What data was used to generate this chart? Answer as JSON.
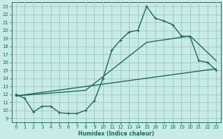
{
  "xlabel": "Humidex (Indice chaleur)",
  "ylabel": "",
  "xlim": [
    -0.5,
    23.5
  ],
  "ylim": [
    8.5,
    23.5
  ],
  "xticks": [
    0,
    1,
    2,
    3,
    4,
    5,
    6,
    7,
    8,
    9,
    10,
    11,
    12,
    13,
    14,
    15,
    16,
    17,
    18,
    19,
    20,
    21,
    22,
    23
  ],
  "yticks": [
    9,
    10,
    11,
    12,
    13,
    14,
    15,
    16,
    17,
    18,
    19,
    20,
    21,
    22,
    23
  ],
  "background_color": "#c8eae8",
  "grid_color": "#a0ccc8",
  "line_color": "#1a6b5a",
  "line1_x": [
    0,
    1,
    2,
    3,
    4,
    5,
    6,
    7,
    8,
    9,
    10,
    11,
    12,
    13,
    14,
    15,
    16,
    17,
    18,
    19,
    20,
    21,
    22,
    23
  ],
  "line1_y": [
    12,
    11.5,
    9.8,
    10.5,
    10.5,
    9.7,
    9.6,
    9.6,
    10.0,
    11.2,
    14.0,
    17.5,
    18.8,
    19.8,
    20.0,
    23.0,
    21.5,
    21.2,
    20.7,
    19.3,
    19.2,
    16.2,
    16.0,
    15.0
  ],
  "line2_x": [
    0,
    23
  ],
  "line2_y": [
    11.8,
    15.2
  ],
  "line3_x": [
    0,
    8,
    15,
    20,
    23
  ],
  "line3_y": [
    11.8,
    12.5,
    18.5,
    19.3,
    16.2
  ]
}
